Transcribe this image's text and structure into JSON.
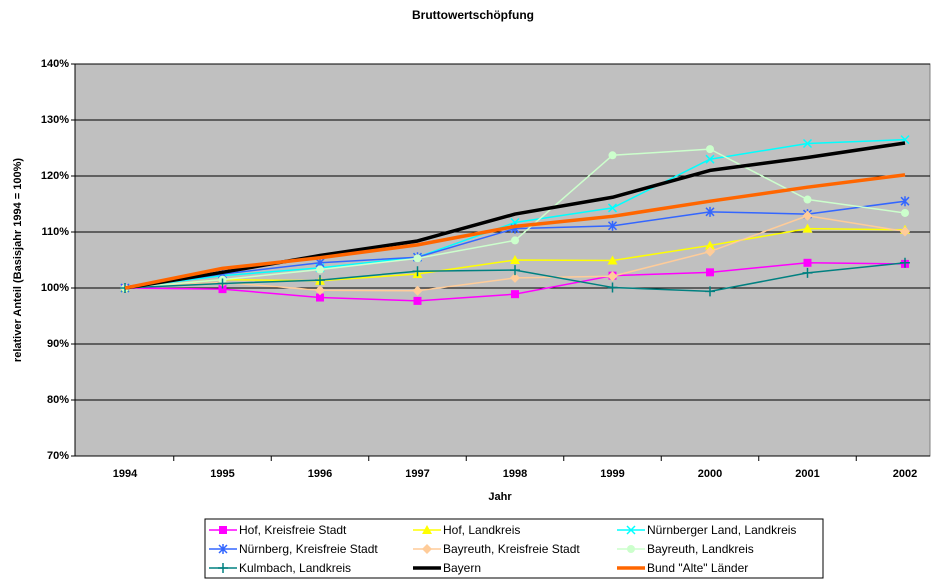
{
  "chart_data": {
    "type": "line",
    "title": "Bruttowertschöpfung",
    "x_label": "Jahr",
    "y_label": "relativer Anteil (Basisjahr 1994 = 100%)",
    "categories": [
      "1994",
      "1995",
      "1996",
      "1997",
      "1998",
      "1999",
      "2000",
      "2001",
      "2002"
    ],
    "ylim": [
      70,
      140
    ],
    "yticks": [
      {
        "value": 70,
        "label": "70%"
      },
      {
        "value": 80,
        "label": "80%"
      },
      {
        "value": 90,
        "label": "90%"
      },
      {
        "value": 100,
        "label": "100%"
      },
      {
        "value": 110,
        "label": "110%"
      },
      {
        "value": 120,
        "label": "120%"
      },
      {
        "value": 130,
        "label": "130%"
      },
      {
        "value": 140,
        "label": "140%"
      }
    ],
    "grid": true,
    "legend": "bottom",
    "series": [
      {
        "name": "Hof, Kreisfreie Stadt",
        "color": "#ff00ff",
        "marker": "square",
        "line_width": 1.5,
        "values": [
          100,
          99.8,
          98.3,
          97.7,
          98.9,
          102.2,
          102.8,
          104.5,
          104.3
        ]
      },
      {
        "name": "Hof, Landkreis",
        "color": "#ffff00",
        "marker": "triangle",
        "line_width": 1.5,
        "values": [
          100,
          101.5,
          101.3,
          102.5,
          105.0,
          104.9,
          107.6,
          110.6,
          110.4
        ]
      },
      {
        "name": "Nürnberger Land, Landkreis",
        "color": "#00ffff",
        "marker": "x",
        "line_width": 1.5,
        "values": [
          100,
          102.2,
          103.6,
          105.5,
          111.7,
          114.3,
          123.0,
          125.8,
          126.5
        ]
      },
      {
        "name": "Nürnberg, Kreisfreie Stadt",
        "color": "#3366ff",
        "marker": "asterisk",
        "line_width": 1.5,
        "values": [
          100,
          102.5,
          104.5,
          105.5,
          110.6,
          111.1,
          113.6,
          113.2,
          115.5
        ]
      },
      {
        "name": "Bayreuth, Kreisfreie Stadt",
        "color": "#ffcc99",
        "marker": "diamond",
        "line_width": 1.5,
        "values": [
          100,
          101.0,
          99.6,
          99.5,
          101.8,
          102.1,
          106.5,
          112.9,
          110.1
        ]
      },
      {
        "name": "Bayreuth, Landkreis",
        "color": "#ccffcc",
        "marker": "circle",
        "line_width": 1.5,
        "values": [
          100,
          101.5,
          103.3,
          105.3,
          108.5,
          123.7,
          124.8,
          115.8,
          113.4
        ]
      },
      {
        "name": "Kulmbach, Landkreis",
        "color": "#008080",
        "marker": "plus",
        "line_width": 1.5,
        "values": [
          100,
          100.8,
          101.4,
          103.0,
          103.2,
          100.1,
          99.4,
          102.7,
          104.5
        ]
      },
      {
        "name": "Bayern",
        "color": "#000000",
        "marker": "none",
        "line_width": 3.5,
        "values": [
          100,
          102.8,
          105.8,
          108.4,
          113.2,
          116.2,
          121.0,
          123.3,
          125.9
        ]
      },
      {
        "name": "Bund \"Alte\" Länder",
        "color": "#ff6600",
        "marker": "none",
        "line_width": 3.5,
        "values": [
          100,
          103.5,
          105.4,
          107.7,
          111.0,
          112.8,
          115.5,
          118.0,
          120.2
        ]
      }
    ]
  }
}
